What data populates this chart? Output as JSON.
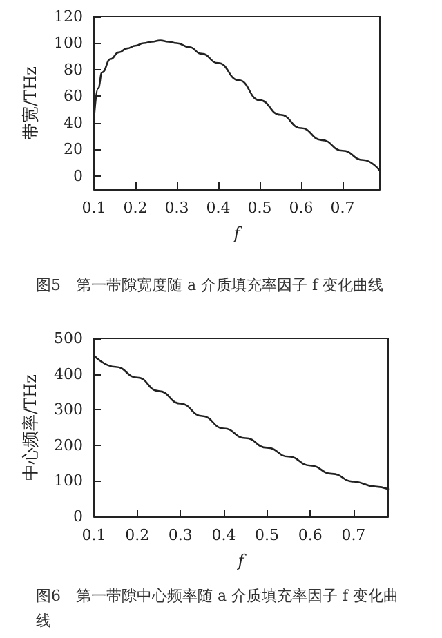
{
  "chart_data": [
    {
      "type": "line",
      "xlabel": "f",
      "ylabel": "带宽/THz",
      "x": [
        0.1,
        0.11,
        0.12,
        0.14,
        0.16,
        0.18,
        0.2,
        0.22,
        0.24,
        0.26,
        0.28,
        0.3,
        0.33,
        0.36,
        0.4,
        0.45,
        0.5,
        0.55,
        0.6,
        0.65,
        0.7,
        0.75,
        0.79
      ],
      "series": [
        {
          "color": "#222222",
          "values": [
            42,
            66,
            78,
            88,
            93,
            96,
            98,
            100,
            101,
            102,
            101,
            100,
            97,
            92,
            85,
            72,
            57,
            46,
            36,
            27,
            19,
            12,
            4
          ]
        }
      ],
      "xlim": [
        0.1,
        0.79
      ],
      "xticks": [
        0.1,
        0.2,
        0.3,
        0.4,
        0.5,
        0.6,
        0.7
      ],
      "ylim": [
        -10,
        120
      ],
      "yticks": [
        0,
        20,
        40,
        60,
        80,
        100,
        120
      ],
      "grid": false,
      "marker": "none",
      "line_style": "solid",
      "annotations": [
        "图5　第一带隙宽度随 a 介质填充率因子 f 变化曲线"
      ]
    },
    {
      "type": "line",
      "xlabel": "f",
      "ylabel": "中心频率/THz",
      "x": [
        0.1,
        0.15,
        0.2,
        0.25,
        0.3,
        0.35,
        0.4,
        0.45,
        0.5,
        0.55,
        0.6,
        0.65,
        0.7,
        0.75,
        0.78
      ],
      "series": [
        {
          "color": "#222222",
          "values": [
            452,
            420,
            390,
            352,
            317,
            282,
            247,
            220,
            193,
            168,
            143,
            120,
            98,
            84,
            77
          ]
        }
      ],
      "xlim": [
        0.1,
        0.78
      ],
      "xticks": [
        0.1,
        0.2,
        0.3,
        0.4,
        0.5,
        0.6,
        0.7
      ],
      "ylim": [
        0,
        500
      ],
      "yticks": [
        0,
        100,
        200,
        300,
        400,
        500
      ],
      "grid": false,
      "marker": "none",
      "line_style": "solid",
      "annotations": [
        "图6　第一带隙中心频率随 a 介质填充率因子 f 变化曲线"
      ]
    }
  ]
}
